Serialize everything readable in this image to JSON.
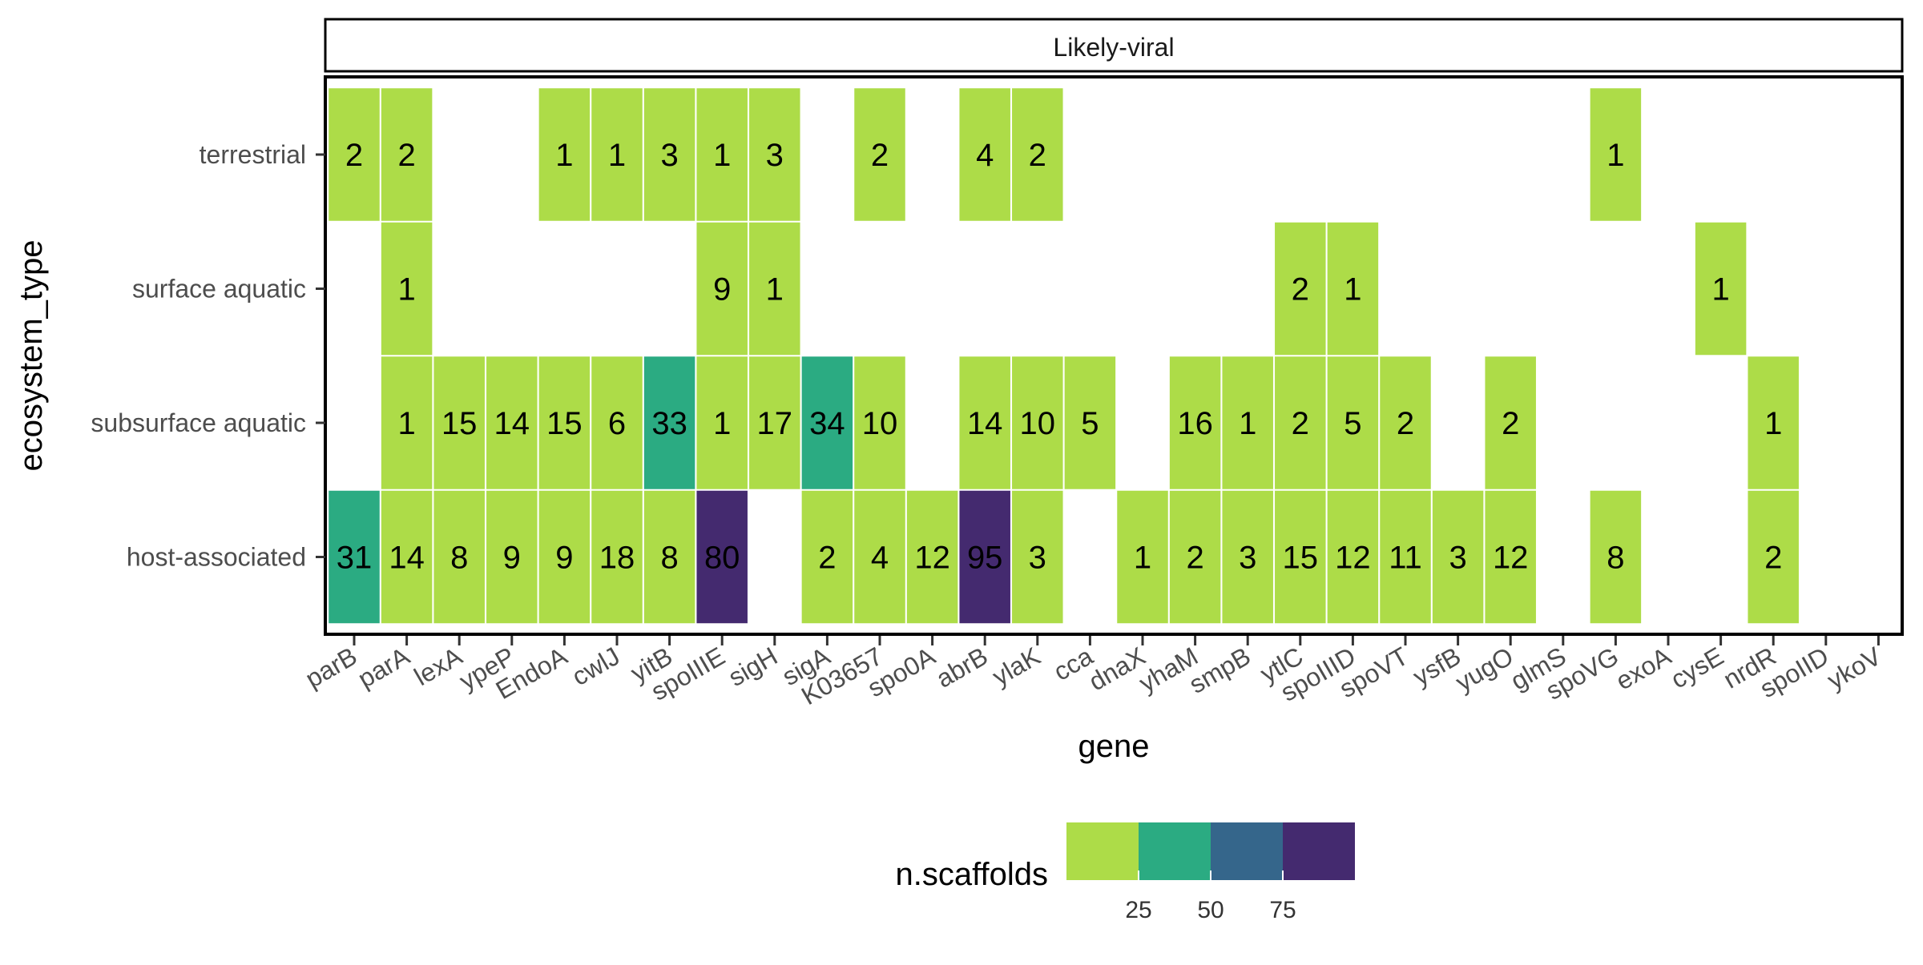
{
  "chart_data": {
    "type": "heatmap",
    "facet_label": "Likely-viral",
    "xlabel": "gene",
    "ylabel": "ecosystem_type",
    "x_categories": [
      "parB",
      "parA",
      "lexA",
      "ypeP",
      "EndoA",
      "cwlJ",
      "yitB",
      "spoIIIE",
      "sigH",
      "sigA",
      "K03657",
      "spo0A",
      "abrB",
      "ylaK",
      "cca",
      "dnaX",
      "yhaM",
      "smpB",
      "ytlC",
      "spoIIID",
      "spoVT",
      "ysfB",
      "yugO",
      "glmS",
      "spoVG",
      "exoA",
      "cysE",
      "nrdR",
      "spoIID",
      "ykoV"
    ],
    "y_categories": [
      "terrestrial",
      "surface aquatic",
      "subsurface aquatic",
      "host-associated"
    ],
    "cells": [
      {
        "x": "parB",
        "y": "terrestrial",
        "value": 2
      },
      {
        "x": "parA",
        "y": "terrestrial",
        "value": 2
      },
      {
        "x": "EndoA",
        "y": "terrestrial",
        "value": 1
      },
      {
        "x": "cwlJ",
        "y": "terrestrial",
        "value": 1
      },
      {
        "x": "yitB",
        "y": "terrestrial",
        "value": 3
      },
      {
        "x": "spoIIIE",
        "y": "terrestrial",
        "value": 1
      },
      {
        "x": "sigH",
        "y": "terrestrial",
        "value": 3
      },
      {
        "x": "K03657",
        "y": "terrestrial",
        "value": 2
      },
      {
        "x": "abrB",
        "y": "terrestrial",
        "value": 4
      },
      {
        "x": "ylaK",
        "y": "terrestrial",
        "value": 2
      },
      {
        "x": "spoVG",
        "y": "terrestrial",
        "value": 1
      },
      {
        "x": "parA",
        "y": "surface aquatic",
        "value": 1
      },
      {
        "x": "spoIIIE",
        "y": "surface aquatic",
        "value": 9
      },
      {
        "x": "sigH",
        "y": "surface aquatic",
        "value": 1
      },
      {
        "x": "ytlC",
        "y": "surface aquatic",
        "value": 2
      },
      {
        "x": "spoIIID",
        "y": "surface aquatic",
        "value": 1
      },
      {
        "x": "cysE",
        "y": "surface aquatic",
        "value": 1
      },
      {
        "x": "parA",
        "y": "subsurface aquatic",
        "value": 1
      },
      {
        "x": "lexA",
        "y": "subsurface aquatic",
        "value": 15
      },
      {
        "x": "ypeP",
        "y": "subsurface aquatic",
        "value": 14
      },
      {
        "x": "EndoA",
        "y": "subsurface aquatic",
        "value": 15
      },
      {
        "x": "cwlJ",
        "y": "subsurface aquatic",
        "value": 6
      },
      {
        "x": "yitB",
        "y": "subsurface aquatic",
        "value": 33
      },
      {
        "x": "spoIIIE",
        "y": "subsurface aquatic",
        "value": 1
      },
      {
        "x": "sigH",
        "y": "subsurface aquatic",
        "value": 17
      },
      {
        "x": "sigA",
        "y": "subsurface aquatic",
        "value": 34
      },
      {
        "x": "K03657",
        "y": "subsurface aquatic",
        "value": 10
      },
      {
        "x": "abrB",
        "y": "subsurface aquatic",
        "value": 14
      },
      {
        "x": "ylaK",
        "y": "subsurface aquatic",
        "value": 10
      },
      {
        "x": "cca",
        "y": "subsurface aquatic",
        "value": 5
      },
      {
        "x": "yhaM",
        "y": "subsurface aquatic",
        "value": 16
      },
      {
        "x": "smpB",
        "y": "subsurface aquatic",
        "value": 1
      },
      {
        "x": "ytlC",
        "y": "subsurface aquatic",
        "value": 2
      },
      {
        "x": "spoIIID",
        "y": "subsurface aquatic",
        "value": 5
      },
      {
        "x": "spoVT",
        "y": "subsurface aquatic",
        "value": 2
      },
      {
        "x": "yugO",
        "y": "subsurface aquatic",
        "value": 2
      },
      {
        "x": "nrdR",
        "y": "subsurface aquatic",
        "value": 1
      },
      {
        "x": "parB",
        "y": "host-associated",
        "value": 31
      },
      {
        "x": "parA",
        "y": "host-associated",
        "value": 14
      },
      {
        "x": "lexA",
        "y": "host-associated",
        "value": 8
      },
      {
        "x": "ypeP",
        "y": "host-associated",
        "value": 9
      },
      {
        "x": "EndoA",
        "y": "host-associated",
        "value": 9
      },
      {
        "x": "cwlJ",
        "y": "host-associated",
        "value": 18
      },
      {
        "x": "yitB",
        "y": "host-associated",
        "value": 8
      },
      {
        "x": "spoIIIE",
        "y": "host-associated",
        "value": 80
      },
      {
        "x": "sigA",
        "y": "host-associated",
        "value": 2
      },
      {
        "x": "K03657",
        "y": "host-associated",
        "value": 4
      },
      {
        "x": "spo0A",
        "y": "host-associated",
        "value": 12
      },
      {
        "x": "abrB",
        "y": "host-associated",
        "value": 95
      },
      {
        "x": "ylaK",
        "y": "host-associated",
        "value": 3
      },
      {
        "x": "dnaX",
        "y": "host-associated",
        "value": 1
      },
      {
        "x": "yhaM",
        "y": "host-associated",
        "value": 2
      },
      {
        "x": "smpB",
        "y": "host-associated",
        "value": 3
      },
      {
        "x": "ytlC",
        "y": "host-associated",
        "value": 15
      },
      {
        "x": "spoIIID",
        "y": "host-associated",
        "value": 12
      },
      {
        "x": "spoVT",
        "y": "host-associated",
        "value": 11
      },
      {
        "x": "ysfB",
        "y": "host-associated",
        "value": 3
      },
      {
        "x": "yugO",
        "y": "host-associated",
        "value": 12
      },
      {
        "x": "spoVG",
        "y": "host-associated",
        "value": 8
      },
      {
        "x": "nrdR",
        "y": "host-associated",
        "value": 2
      }
    ],
    "legend": {
      "title": "n.scaffolds",
      "position": "bottom",
      "bins": [
        {
          "max": 25,
          "color": "#addc48"
        },
        {
          "max": 50,
          "color": "#2bab82"
        },
        {
          "max": 75,
          "color": "#35668b"
        },
        {
          "max": 100,
          "color": "#442a6f"
        }
      ],
      "tick_labels": [
        "25",
        "50",
        "75"
      ]
    },
    "grid": false
  }
}
